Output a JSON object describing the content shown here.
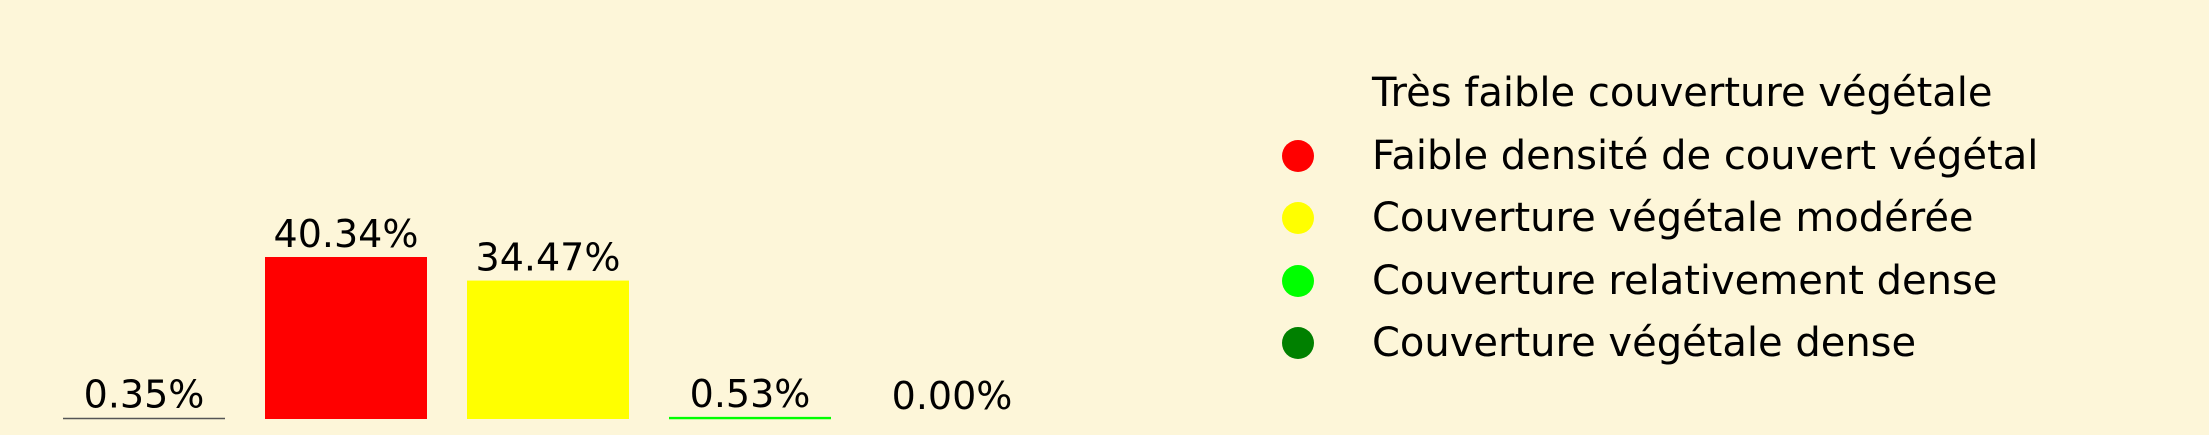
{
  "chart_data": {
    "type": "bar",
    "categories": [
      "Très faible couverture végétale",
      "Faible densité de couvert végétal",
      "Couverture végétale modérée",
      "Couverture relativement dense",
      "Couverture végétale dense"
    ],
    "values": [
      0.35,
      40.34,
      34.47,
      0.53,
      0.0
    ],
    "data_labels": [
      "0.35%",
      "40.34%",
      "34.47%",
      "0.53%",
      "0.00%"
    ],
    "colors": [
      "#fdf6d9",
      "#ff0000",
      "#ffff00",
      "#00ff00",
      "#008000"
    ],
    "title": "",
    "xlabel": "",
    "ylabel": "",
    "ylim": [
      0,
      40.34
    ],
    "grid": false,
    "legend_position": "right"
  }
}
